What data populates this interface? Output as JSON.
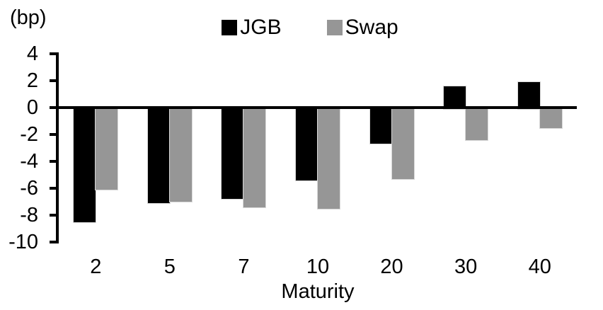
{
  "chart_data": {
    "type": "bar",
    "title": "",
    "unit_label": "(bp)",
    "xlabel": "Maturity",
    "categories": [
      "2",
      "5",
      "7",
      "10",
      "20",
      "30",
      "40"
    ],
    "series": [
      {
        "name": "JGB",
        "color": "#000000",
        "values": [
          -8.5,
          -7.1,
          -6.8,
          -5.4,
          -2.7,
          1.6,
          1.9
        ]
      },
      {
        "name": "Swap",
        "color": "#969696",
        "values": [
          -6.1,
          -7.0,
          -7.4,
          -7.5,
          -5.3,
          -2.4,
          -1.5
        ]
      }
    ],
    "ylim": [
      -10,
      4
    ],
    "yticks": [
      4,
      2,
      0,
      -2,
      -4,
      -6,
      -8,
      -10
    ],
    "grid": false,
    "legend_position": "top",
    "background": "#ffffff"
  }
}
